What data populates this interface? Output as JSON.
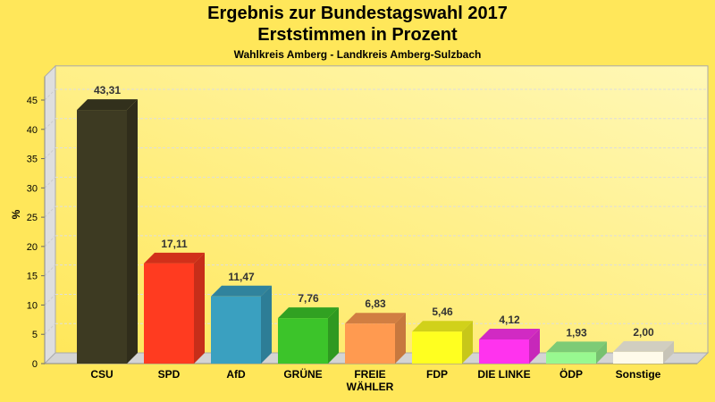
{
  "chart_data": {
    "type": "bar",
    "title": "Ergebnis zur Bundestagswahl 2017",
    "subtitle": "Erststimmen in Prozent",
    "subsubtitle": "Wahlkreis Amberg - Landkreis Amberg-Sulzbach",
    "ylabel": "%",
    "xlabel": "",
    "ylim": [
      0,
      49
    ],
    "yticks": [
      0,
      5,
      10,
      15,
      20,
      25,
      30,
      35,
      40,
      45
    ],
    "grid": true,
    "three_d": true,
    "categories": [
      "CSU",
      "SPD",
      "AfD",
      "GRÜNE",
      "FREIE WÄHLER",
      "FDP",
      "DIE LINKE",
      "ÖDP",
      "Sonstige"
    ],
    "values": [
      43.31,
      17.11,
      11.47,
      7.76,
      6.83,
      5.46,
      4.12,
      1.93,
      2.0
    ],
    "value_labels": [
      "43,31",
      "17,11",
      "11,47",
      "7,76",
      "6,83",
      "5,46",
      "4,12",
      "1,93",
      "2,00"
    ],
    "colors": [
      "#3d3a22",
      "#ff3b20",
      "#3aa0c0",
      "#3cc42a",
      "#ff9a50",
      "#ffff20",
      "#ff33ee",
      "#98f890",
      "#fffbea"
    ]
  }
}
